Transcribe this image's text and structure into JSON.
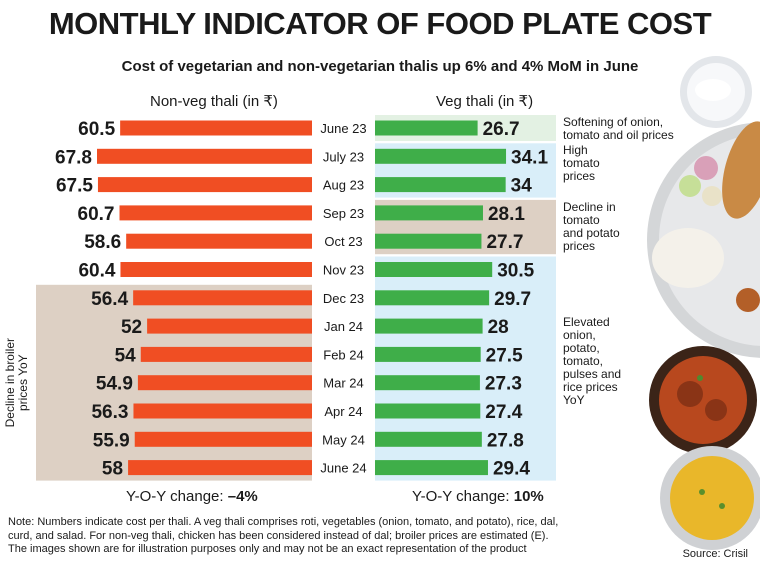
{
  "title": "MONTHLY INDICATOR OF FOOD PLATE COST",
  "subtitle": "Cost of vegetarian and non-vegetarian thalis up 6% and 4% MoM in June",
  "headers": {
    "nonveg": "Non-veg thali (in ₹)",
    "veg": "Veg thali (in ₹)"
  },
  "colors": {
    "nonveg_bar": "#f04e23",
    "veg_bar": "#3fae49",
    "tan_band": "#ddd0c4",
    "blue_band": "#d9eef9",
    "green_band": "#e3f1e3"
  },
  "chart_data": {
    "type": "bar",
    "orientation": "horizontal-butterfly",
    "categories": [
      "June 23",
      "July 23",
      "Aug 23",
      "Sep 23",
      "Oct 23",
      "Nov 23",
      "Dec 23",
      "Jan 24",
      "Feb 24",
      "Mar 24",
      "Apr 24",
      "May 24",
      "June 24"
    ],
    "series": [
      {
        "name": "Non-veg thali (in ₹)",
        "values": [
          60.5,
          67.8,
          67.5,
          60.7,
          58.6,
          60.4,
          56.4,
          52,
          54,
          54.9,
          56.3,
          55.9,
          58
        ]
      },
      {
        "name": "Veg thali (in ₹)",
        "values": [
          26.7,
          34.1,
          34,
          28.1,
          27.7,
          30.5,
          29.7,
          28,
          27.5,
          27.3,
          27.4,
          27.8,
          29.4
        ]
      }
    ],
    "nonveg_max": 67.8,
    "veg_max": 34.1
  },
  "annotations": {
    "veg": [
      {
        "text": "Softening of onion, tomato and oil prices",
        "from": 0,
        "to": 0,
        "band": "green"
      },
      {
        "text": "High tomato prices",
        "from": 1,
        "to": 2,
        "band": "blue"
      },
      {
        "text": "Decline in tomato and potato prices",
        "from": 3,
        "to": 4,
        "band": "tan"
      },
      {
        "text": "Elevated onion, potato, tomato, pulses and rice prices YoY",
        "from": 5,
        "to": 12,
        "band": "blue"
      }
    ],
    "nonveg": {
      "text": "Decline in broiler prices YoY",
      "from": 6,
      "to": 12,
      "band": "tan"
    }
  },
  "yoy": {
    "nonveg_label": "Y-O-Y change: ",
    "nonveg_value": "–4%",
    "veg_label": "Y-O-Y change: ",
    "veg_value": "10%"
  },
  "note": "Note: Numbers indicate cost per thali. A veg thali comprises roti, vegetables (onion, tomato, and potato), rice, dal, curd, and salad. For non-veg thali, chicken has been considered instead of dal; broiler prices are estimated (E). The images shown are for illustration purposes only and may not be an exact representation of the product",
  "source": "Source: Crisil"
}
